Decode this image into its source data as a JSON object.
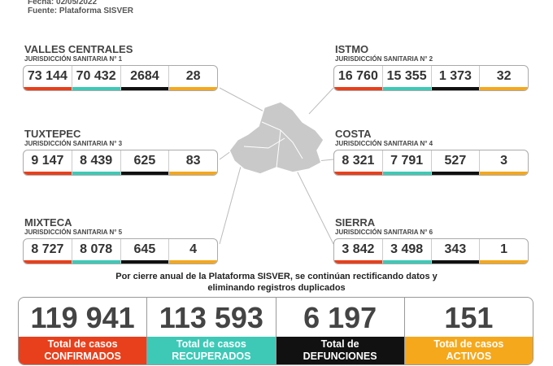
{
  "header": {
    "date": "Fecha: 02/05/2022",
    "source": "Fuente: Plataforma SISVER"
  },
  "regions": [
    {
      "name": "VALLES CENTRALES",
      "jurisdiction": "JURISDICCIÓN SANITARIA N° 1",
      "values": [
        "73 144",
        "70 432",
        "2684",
        "28"
      ]
    },
    {
      "name": "ISTMO",
      "jurisdiction": "JURISDICCIÓN SANITARIA N° 2",
      "values": [
        "16 760",
        "15 355",
        "1 373",
        "32"
      ]
    },
    {
      "name": "TUXTEPEC",
      "jurisdiction": "JURISDICCIÓN SANITARIA N° 3",
      "values": [
        "9 147",
        "8 439",
        "625",
        "83"
      ]
    },
    {
      "name": "COSTA",
      "jurisdiction": "JURISDICCIÓN SANITARIA N° 4",
      "values": [
        "8 321",
        "7 791",
        "527",
        "3"
      ]
    },
    {
      "name": "MIXTECA",
      "jurisdiction": "JURISDICCIÓN SANITARIA N° 5",
      "values": [
        "8 727",
        "8 078",
        "645",
        "4"
      ]
    },
    {
      "name": "SIERRA",
      "jurisdiction": "JURISDICCIÓN SANITARIA N° 6",
      "values": [
        "3 842",
        "3 498",
        "343",
        "1"
      ]
    }
  ],
  "note": [
    "Por cierre anual de la Plataforma SISVER, se continúan rectificando datos y",
    "eliminando registros duplicados"
  ],
  "totals": [
    {
      "value": "119 941",
      "label": [
        "Total de casos",
        "CONFIRMADOS"
      ]
    },
    {
      "value": "113 593",
      "label": [
        "Total de casos",
        "RECUPERADOS"
      ]
    },
    {
      "value": "6 197",
      "label": [
        "Total de",
        "DEFUNCIONES"
      ]
    },
    {
      "value": "151",
      "label": [
        "Total de casos",
        "ACTIVOS"
      ]
    }
  ]
}
